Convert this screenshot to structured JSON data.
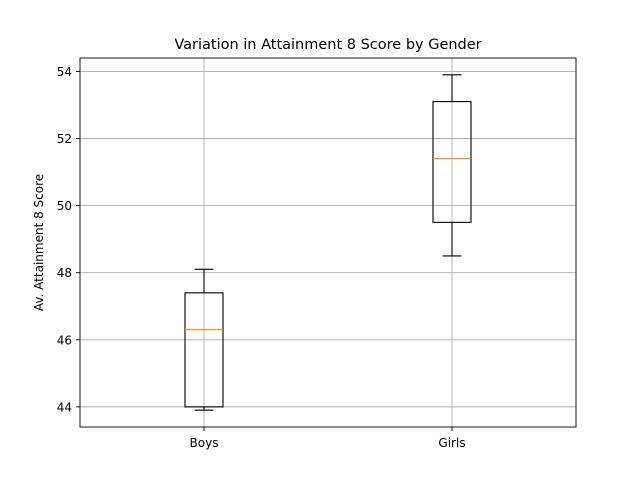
{
  "chart_data": {
    "type": "boxplot",
    "title": "Variation in Attainment 8 Score by Gender",
    "xlabel": "",
    "ylabel": "Av. Attainment 8 Score",
    "ylim": [
      43.4,
      54.4
    ],
    "yticks": [
      44,
      46,
      48,
      50,
      52,
      54
    ],
    "grid": true,
    "categories": [
      "Boys",
      "Girls"
    ],
    "boxes": [
      {
        "category": "Boys",
        "min": 43.9,
        "q1": 44.0,
        "median": 46.3,
        "q3": 47.4,
        "max": 48.1
      },
      {
        "category": "Girls",
        "min": 48.5,
        "q1": 49.5,
        "median": 51.4,
        "q3": 53.1,
        "max": 53.9
      }
    ],
    "colors": {
      "box": "#000000",
      "median": "#ff7f0e",
      "grid": "#b0b0b0"
    }
  }
}
